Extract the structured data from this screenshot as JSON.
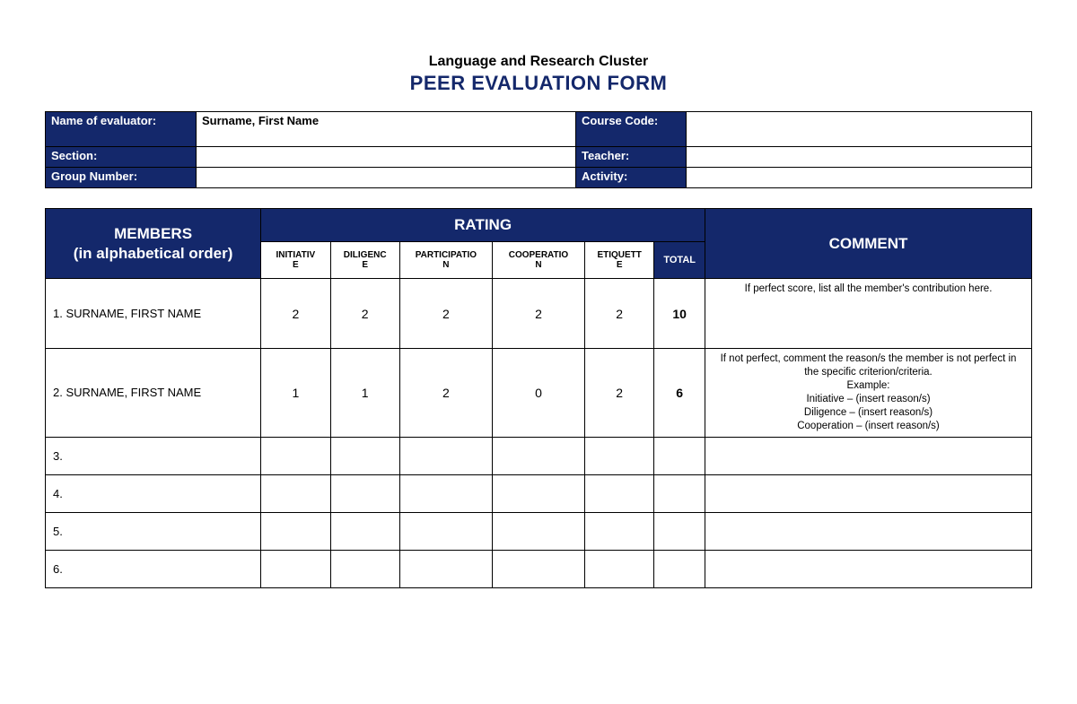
{
  "header": {
    "subtitle": "Language and Research Cluster",
    "title": "PEER EVALUATION FORM"
  },
  "info": {
    "evaluator_label": "Name of evaluator:",
    "evaluator_value": "Surname, First Name",
    "course_label": "Course Code:",
    "course_value": "",
    "section_label": "Section:",
    "section_value": "",
    "teacher_label": "Teacher:",
    "teacher_value": "",
    "group_label": "Group Number:",
    "group_value": "",
    "activity_label": "Activity:",
    "activity_value": ""
  },
  "table": {
    "members_header": "MEMBERS\n(in alphabetical order)",
    "rating_header": "RATING",
    "comment_header": "COMMENT",
    "criteria": [
      "INITIATIVE",
      "DILIGENCE",
      "PARTICIPATION",
      "COOPERATION",
      "ETIQUETTE"
    ],
    "total_label": "TOTAL",
    "rows": [
      {
        "member": "1. SURNAME, FIRST NAME",
        "scores": [
          "2",
          "2",
          "2",
          "2",
          "2"
        ],
        "total": "10",
        "comment": "If perfect score, list all the member's contribution here.",
        "height": "tall"
      },
      {
        "member": "2. SURNAME, FIRST NAME",
        "scores": [
          "1",
          "1",
          "2",
          "0",
          "2"
        ],
        "total": "6",
        "comment": "If not perfect, comment the reason/s  the member is not perfect in the specific criterion/criteria.\nExample:\nInitiative – (insert reason/s)\nDiligence – (insert reason/s)\nCooperation – (insert reason/s)",
        "height": "tall2"
      },
      {
        "member": "3.",
        "scores": [
          "",
          "",
          "",
          "",
          ""
        ],
        "total": "",
        "comment": "",
        "height": "short"
      },
      {
        "member": "4.",
        "scores": [
          "",
          "",
          "",
          "",
          ""
        ],
        "total": "",
        "comment": "",
        "height": "short"
      },
      {
        "member": "5.",
        "scores": [
          "",
          "",
          "",
          "",
          ""
        ],
        "total": "",
        "comment": "",
        "height": "short"
      },
      {
        "member": "6.",
        "scores": [
          "",
          "",
          "",
          "",
          ""
        ],
        "total": "",
        "comment": "",
        "height": "short"
      }
    ]
  },
  "colors": {
    "brand": "#14286b",
    "text": "#000000",
    "bg": "#ffffff"
  }
}
